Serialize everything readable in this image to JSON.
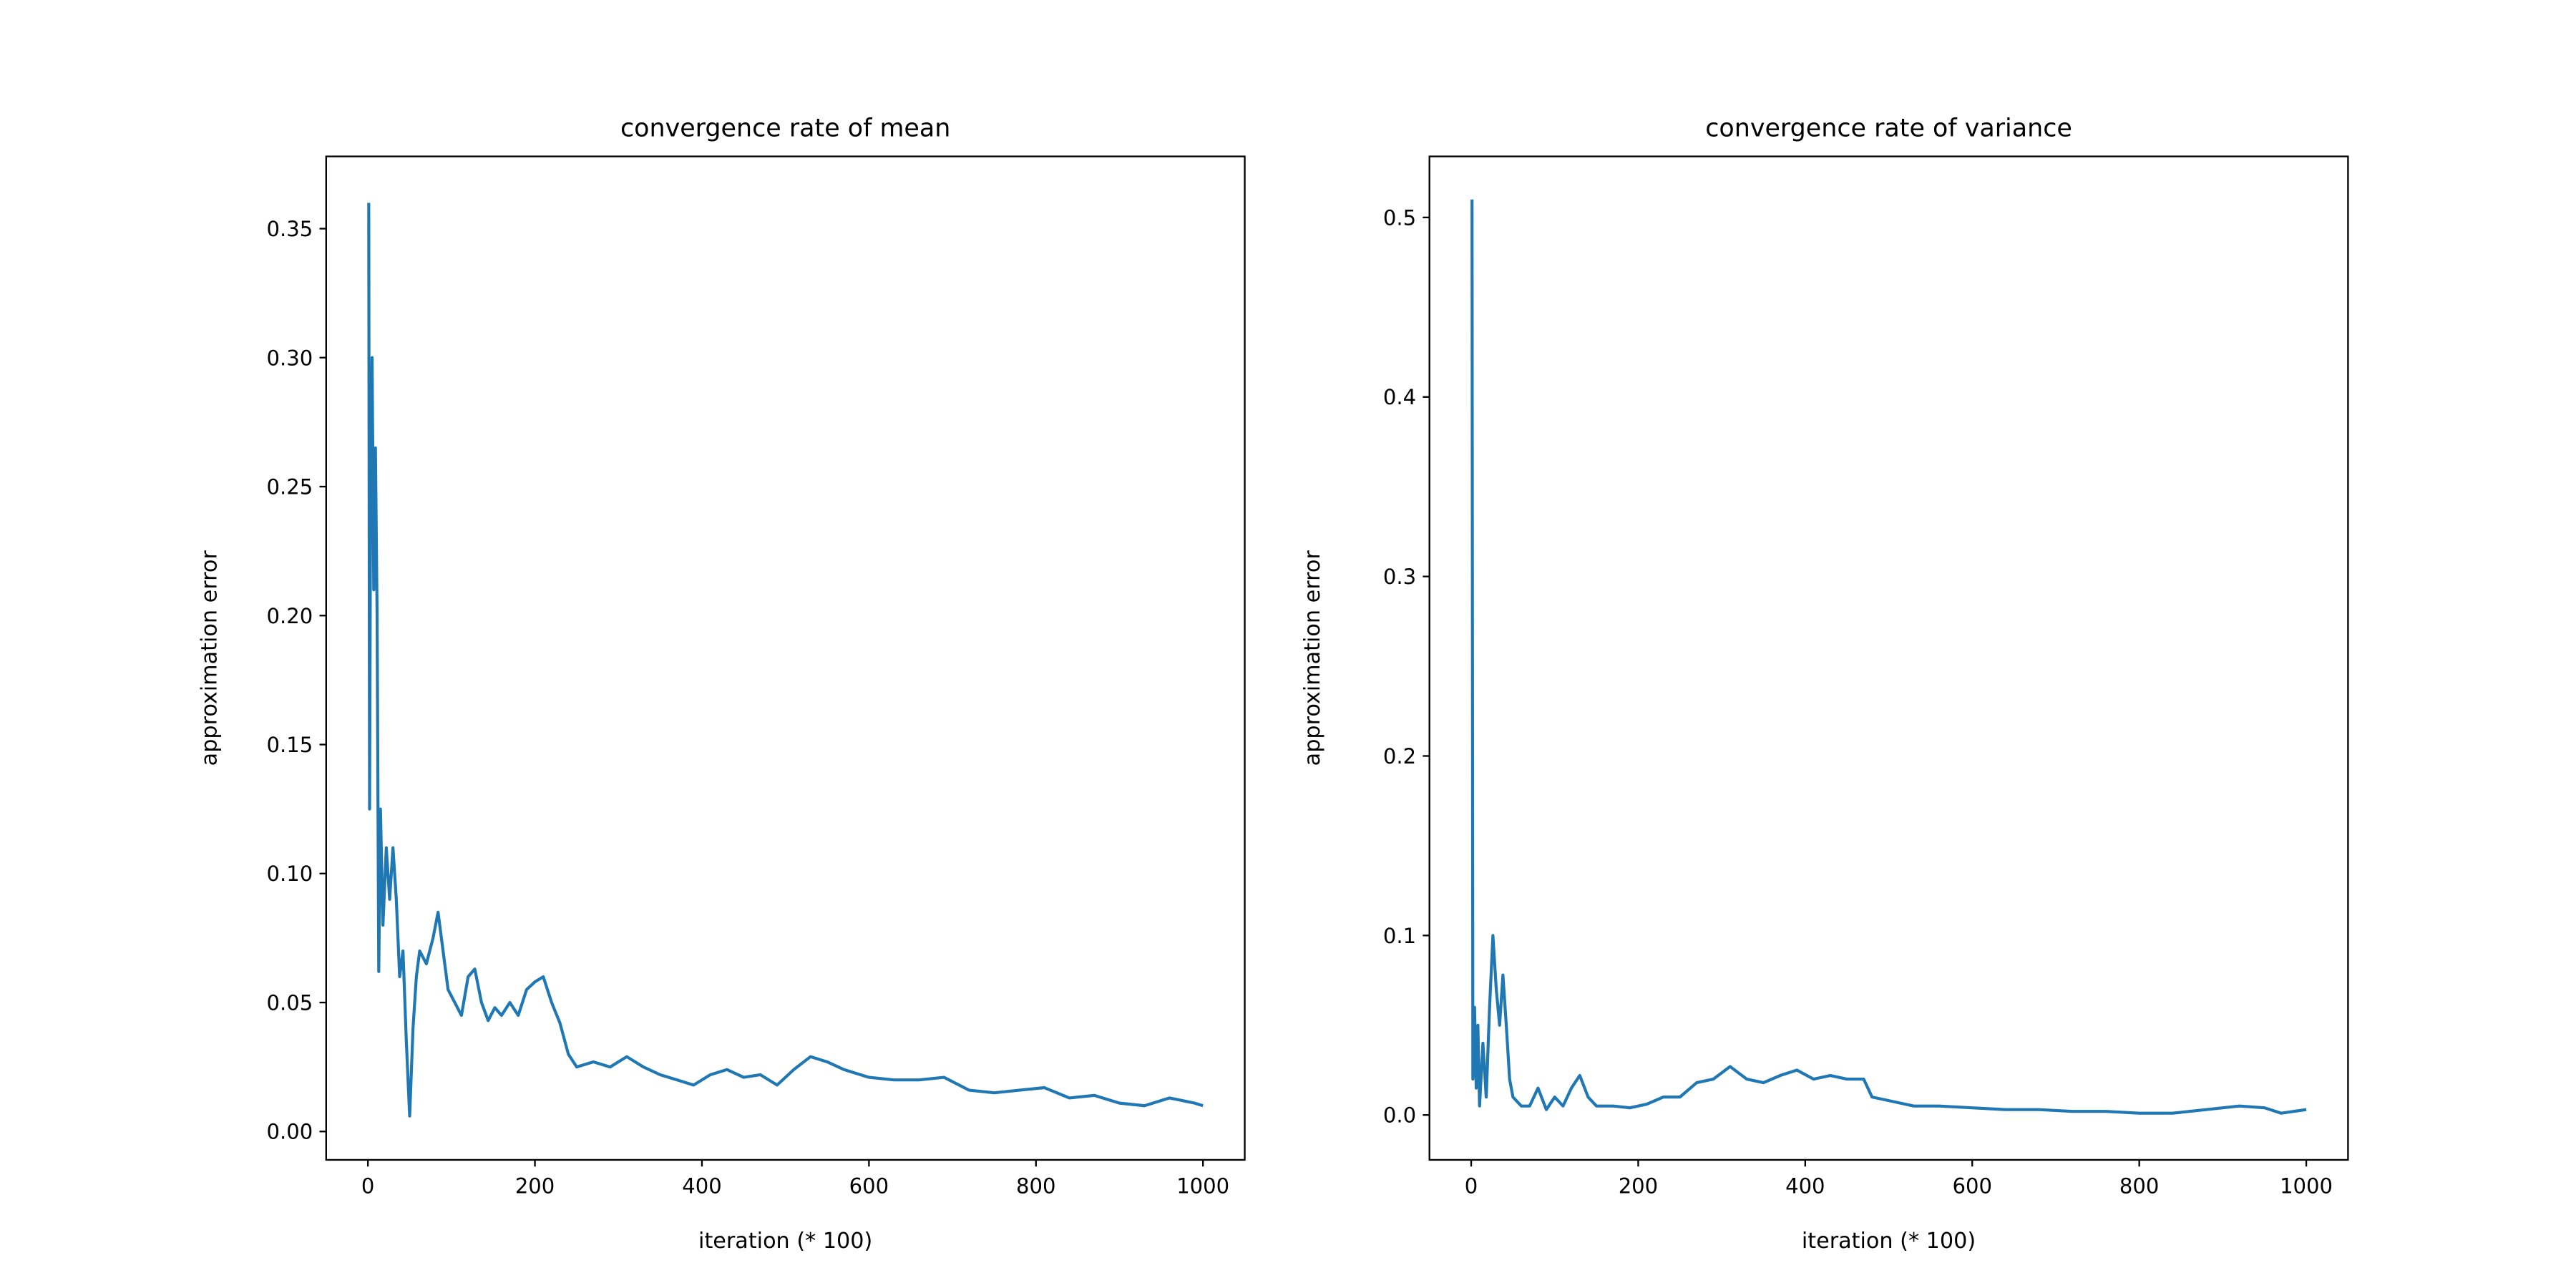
{
  "chart_data": [
    {
      "type": "line",
      "title": "convergence rate of mean",
      "x_label": "iteration (* 100)",
      "y_label": "approximation error",
      "xlim": [
        -50,
        1050
      ],
      "ylim": [
        -0.011,
        0.378
      ],
      "xticks": [
        0,
        200,
        400,
        600,
        800,
        1000
      ],
      "yticks": [
        {
          "value": 0,
          "label": "0.00"
        },
        {
          "value": 0.05,
          "label": "0.05"
        },
        {
          "value": 0.1,
          "label": "0.10"
        },
        {
          "value": 0.15,
          "label": "0.15"
        },
        {
          "value": 0.2,
          "label": "0.20"
        },
        {
          "value": 0.25,
          "label": "0.25"
        },
        {
          "value": 0.3,
          "label": "0.30"
        },
        {
          "value": 0.35,
          "label": "0.35"
        }
      ],
      "x": [
        1,
        2,
        3,
        5,
        7,
        9,
        11,
        13,
        15,
        18,
        22,
        26,
        30,
        34,
        38,
        42,
        46,
        50,
        54,
        58,
        62,
        70,
        78,
        84,
        90,
        96,
        104,
        112,
        120,
        128,
        136,
        144,
        152,
        160,
        170,
        180,
        190,
        200,
        210,
        220,
        230,
        240,
        250,
        270,
        290,
        310,
        330,
        350,
        370,
        390,
        410,
        430,
        450,
        470,
        490,
        510,
        530,
        550,
        570,
        600,
        630,
        660,
        690,
        720,
        750,
        780,
        810,
        840,
        870,
        900,
        930,
        960,
        990,
        1000
      ],
      "series": [
        {
          "color": "#1f77b4",
          "values": [
            0.36,
            0.125,
            0.23,
            0.3,
            0.21,
            0.265,
            0.2,
            0.062,
            0.125,
            0.08,
            0.11,
            0.09,
            0.11,
            0.09,
            0.06,
            0.07,
            0.035,
            0.006,
            0.04,
            0.06,
            0.07,
            0.065,
            0.075,
            0.085,
            0.07,
            0.055,
            0.05,
            0.045,
            0.06,
            0.063,
            0.05,
            0.043,
            0.048,
            0.045,
            0.05,
            0.045,
            0.055,
            0.058,
            0.06,
            0.05,
            0.042,
            0.03,
            0.025,
            0.027,
            0.025,
            0.029,
            0.025,
            0.022,
            0.02,
            0.018,
            0.022,
            0.024,
            0.021,
            0.022,
            0.018,
            0.024,
            0.029,
            0.027,
            0.024,
            0.021,
            0.02,
            0.02,
            0.021,
            0.016,
            0.015,
            0.016,
            0.017,
            0.013,
            0.014,
            0.011,
            0.01,
            0.013,
            0.011,
            0.01
          ]
        }
      ]
    },
    {
      "type": "line",
      "title": "convergence rate of variance",
      "x_label": "iteration (* 100)",
      "y_label": "approximation error",
      "xlim": [
        -50,
        1050
      ],
      "ylim": [
        -0.025,
        0.534
      ],
      "xticks": [
        0,
        200,
        400,
        600,
        800,
        1000
      ],
      "yticks": [
        {
          "value": 0,
          "label": "0.0"
        },
        0.1,
        0.2,
        0.3,
        0.4,
        0.5
      ],
      "x": [
        1,
        2,
        4,
        6,
        8,
        10,
        14,
        18,
        22,
        26,
        30,
        34,
        38,
        42,
        46,
        50,
        60,
        70,
        80,
        90,
        100,
        110,
        120,
        130,
        140,
        150,
        170,
        190,
        210,
        230,
        250,
        270,
        290,
        310,
        330,
        350,
        370,
        390,
        410,
        430,
        450,
        470,
        480,
        500,
        530,
        560,
        600,
        640,
        680,
        720,
        760,
        800,
        840,
        880,
        920,
        950,
        970,
        1000
      ],
      "series": [
        {
          "color": "#1f77b4",
          "values": [
            0.51,
            0.02,
            0.06,
            0.015,
            0.05,
            0.005,
            0.04,
            0.01,
            0.06,
            0.1,
            0.07,
            0.05,
            0.078,
            0.05,
            0.02,
            0.01,
            0.005,
            0.005,
            0.015,
            0.003,
            0.01,
            0.005,
            0.015,
            0.022,
            0.01,
            0.005,
            0.005,
            0.004,
            0.006,
            0.01,
            0.01,
            0.018,
            0.02,
            0.027,
            0.02,
            0.018,
            0.022,
            0.025,
            0.02,
            0.022,
            0.02,
            0.02,
            0.01,
            0.008,
            0.005,
            0.005,
            0.004,
            0.003,
            0.003,
            0.002,
            0.002,
            0.001,
            0.001,
            0.003,
            0.005,
            0.004,
            0.001,
            0.003
          ]
        }
      ]
    }
  ]
}
